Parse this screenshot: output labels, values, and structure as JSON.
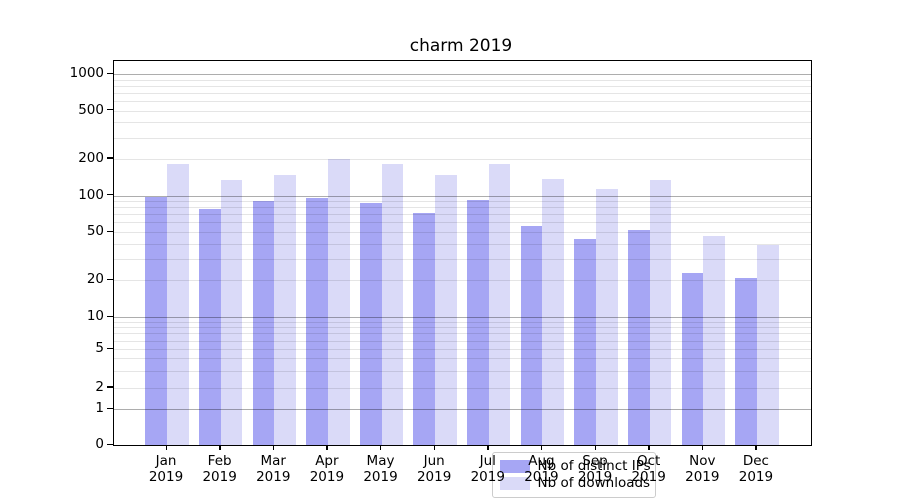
{
  "chart_data": {
    "type": "bar",
    "title": "charm 2019",
    "categories": [
      "Jan",
      "Feb",
      "Mar",
      "Apr",
      "May",
      "Jun",
      "Jul",
      "Aug",
      "Sep",
      "Oct",
      "Nov",
      "Dec"
    ],
    "category_year": "2019",
    "series": [
      {
        "name": "Nb of distinct IPs",
        "color": "#a6a6f4",
        "values": [
          98,
          78,
          90,
          95,
          86,
          72,
          91,
          56,
          44,
          52,
          23,
          21
        ]
      },
      {
        "name": "Nb of downloads",
        "color": "#dadaf8",
        "values": [
          183,
          134,
          147,
          199,
          181,
          147,
          182,
          136,
          114,
          133,
          46,
          39
        ]
      }
    ],
    "xlabel": "",
    "ylabel": "",
    "yscale": "symlog",
    "ylim": [
      0,
      1280
    ],
    "y_tick_labels": [
      "1000",
      "500",
      "200",
      "100",
      "50",
      "20",
      "10",
      "5",
      "2",
      "1",
      "0"
    ],
    "y_tick_values": [
      1000,
      500,
      200,
      100,
      50,
      20,
      10,
      5,
      2,
      1,
      0
    ],
    "grid": true,
    "legend_position": "lower center"
  },
  "colors": {
    "axis": "#000000",
    "grid_major": "#adadad",
    "grid_minor": "#e6e6e6",
    "legend_border": "#cccccc",
    "legend_background": "#ffffff"
  }
}
